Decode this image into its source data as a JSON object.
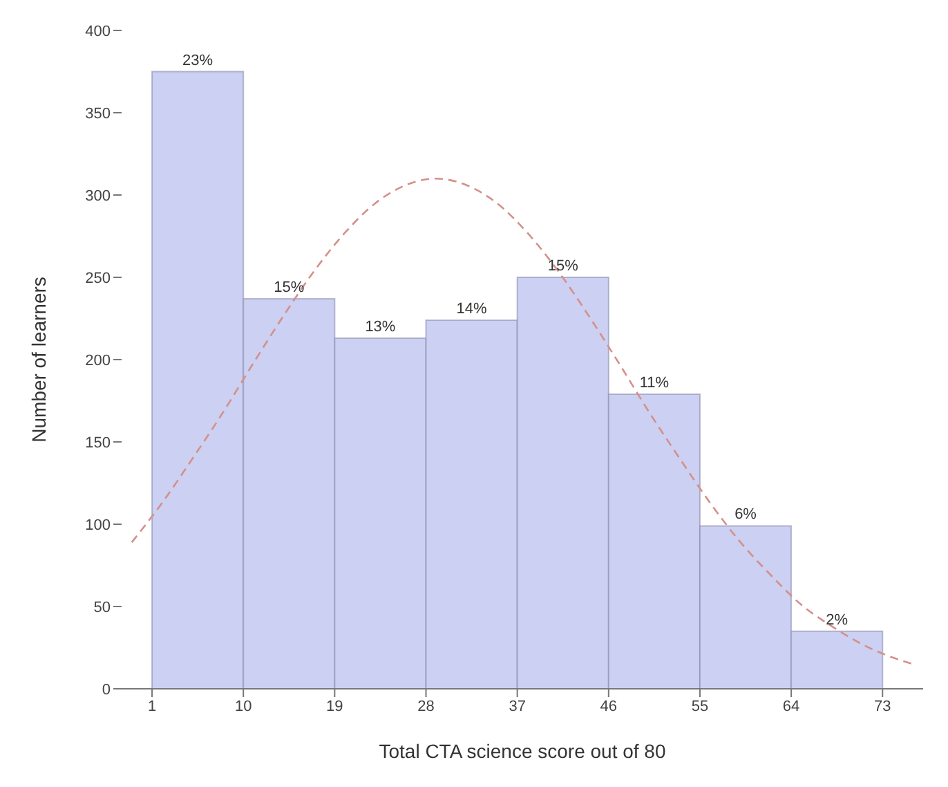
{
  "chart_data": {
    "type": "histogram",
    "xlabel": "Total CTA science score out of 80",
    "ylabel": "Number of learners",
    "bins": [
      1,
      10,
      19,
      28,
      37,
      46,
      55,
      64,
      73
    ],
    "values": [
      375,
      237,
      213,
      224,
      250,
      179,
      99,
      35
    ],
    "annotations": [
      {
        "text": "23%",
        "x": 5.5,
        "y": 375
      },
      {
        "text": "15%",
        "x": 14.5,
        "y": 237
      },
      {
        "text": "13%",
        "x": 23.5,
        "y": 213
      },
      {
        "text": "14%",
        "x": 32.5,
        "y": 224
      },
      {
        "text": "15%",
        "x": 41.5,
        "y": 250
      },
      {
        "text": "11%",
        "x": 50.5,
        "y": 179
      },
      {
        "text": "6%",
        "x": 59.5,
        "y": 99
      },
      {
        "text": "2%",
        "x": 68.5,
        "y": 35
      }
    ],
    "color": "#ccd0f2",
    "series": [
      {
        "type": "line",
        "color": "#d4908a",
        "line_style": "dashed",
        "x": [
          -1,
          2,
          5,
          8,
          11,
          14,
          17,
          20,
          23,
          26,
          29,
          32,
          35,
          38,
          41,
          44,
          47,
          50,
          53,
          56,
          59,
          62,
          65,
          68,
          71,
          74,
          76
        ],
        "values": [
          89,
          113,
          140,
          168,
          198,
          227,
          254,
          277,
          295,
          306,
          310,
          306,
          295,
          277,
          254,
          227,
          198,
          168,
          140,
          113,
          89,
          69,
          51,
          38,
          27,
          19,
          15
        ]
      }
    ],
    "xlim": [
      -2,
      77
    ],
    "xticks": [
      1,
      10,
      19,
      28,
      37,
      46,
      55,
      64,
      73
    ],
    "yticks": [
      0,
      50,
      100,
      150,
      200,
      250,
      300,
      350,
      400
    ],
    "ylim": [
      0,
      400
    ]
  }
}
